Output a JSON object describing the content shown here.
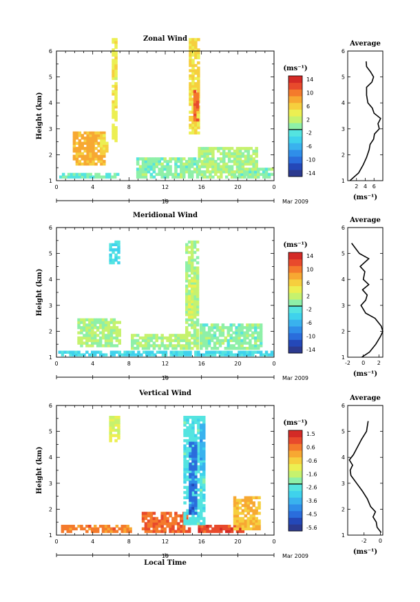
{
  "figure": {
    "date_label": "Mar 2009",
    "day_label": "19",
    "xlabel": "Local Time",
    "colors": [
      "#2c3a8f",
      "#2448b8",
      "#2a6ddc",
      "#2f8ee9",
      "#39b2ee",
      "#3fd2ec",
      "#54e4e0",
      "#8ef0a8",
      "#c6f26e",
      "#ecef52",
      "#f6cf3e",
      "#f7a832",
      "#f47a2c",
      "#e84a2c",
      "#d42a26"
    ]
  },
  "chart_data": [
    {
      "id": "zonal",
      "type": "heatmap",
      "title": "Zonal Wind",
      "ylabel": "Height (km)",
      "xlim": [
        0,
        24
      ],
      "ylim": [
        1,
        6
      ],
      "xticks": [
        "0",
        "4",
        "8",
        "12",
        "16",
        "20",
        "0"
      ],
      "yticks": [
        "1",
        "2",
        "3",
        "4",
        "5",
        "6"
      ],
      "colorbar": {
        "unit": "(ms⁻¹)",
        "labels": [
          "14",
          "10",
          "6",
          "2",
          "-2",
          "-6",
          "-10",
          "-14"
        ],
        "range": [
          -14,
          14
        ]
      },
      "patches": [
        {
          "t": [
            0.3,
            6.8
          ],
          "h": [
            1.1,
            1.3
          ],
          "v": -1
        },
        {
          "t": [
            1.8,
            5.2
          ],
          "h": [
            1.6,
            2.9
          ],
          "v": 7
        },
        {
          "t": [
            4.8,
            5.4
          ],
          "h": [
            2.1,
            2.8
          ],
          "v": 5
        },
        {
          "t": [
            6.1,
            6.5
          ],
          "h": [
            2.5,
            6.4
          ],
          "v": 4
        },
        {
          "t": [
            8.8,
            15.5
          ],
          "h": [
            1.1,
            1.9
          ],
          "v": 0
        },
        {
          "t": [
            14.6,
            15.6
          ],
          "h": [
            2.8,
            6.4
          ],
          "v": 5
        },
        {
          "t": [
            15.1,
            15.5
          ],
          "h": [
            3.3,
            4.4
          ],
          "v": 10
        },
        {
          "t": [
            15.6,
            22.2
          ],
          "h": [
            1.1,
            2.3
          ],
          "v": 1
        },
        {
          "t": [
            20.0,
            23.8
          ],
          "h": [
            1.1,
            1.5
          ],
          "v": 0
        }
      ],
      "profile": {
        "xlim": [
          0,
          8
        ],
        "xticks": [
          "2",
          "4",
          "6"
        ],
        "xtick_vals": [
          2,
          4,
          6
        ],
        "heights": [
          1.0,
          1.3,
          1.6,
          1.9,
          2.2,
          2.4,
          2.6,
          2.8,
          3.0,
          3.2,
          3.4,
          3.6,
          3.8,
          4.0,
          4.3,
          4.6,
          4.8,
          5.0,
          5.2,
          5.4,
          5.6
        ],
        "values": [
          0.5,
          2.5,
          3.5,
          4.3,
          4.9,
          5.1,
          5.9,
          6.1,
          7.2,
          6.9,
          7.5,
          6.0,
          5.6,
          4.6,
          4.3,
          4.3,
          5.5,
          5.9,
          5.2,
          4.3,
          4.2
        ]
      }
    },
    {
      "id": "meridional",
      "type": "heatmap",
      "title": "Meridional Wind",
      "ylabel": "Height (km)",
      "xlim": [
        0,
        24
      ],
      "ylim": [
        1,
        6
      ],
      "xticks": [
        "0",
        "4",
        "8",
        "12",
        "16",
        "20",
        "0"
      ],
      "yticks": [
        "1",
        "2",
        "3",
        "4",
        "5",
        "6"
      ],
      "colorbar": {
        "unit": "(ms⁻¹)",
        "labels": [
          "14",
          "10",
          "6",
          "2",
          "-2",
          "-6",
          "-10",
          "-14"
        ],
        "range": [
          -14,
          14
        ]
      },
      "patches": [
        {
          "t": [
            0.2,
            23.8
          ],
          "h": [
            1.05,
            1.25
          ],
          "v": -3
        },
        {
          "t": [
            5.8,
            6.7
          ],
          "h": [
            4.6,
            5.4
          ],
          "v": -3
        },
        {
          "t": [
            2.3,
            6.8
          ],
          "h": [
            1.4,
            2.5
          ],
          "v": 1
        },
        {
          "t": [
            8.2,
            14.5
          ],
          "h": [
            1.3,
            1.9
          ],
          "v": 1
        },
        {
          "t": [
            14.2,
            15.6
          ],
          "h": [
            1.3,
            5.4
          ],
          "v": 1
        },
        {
          "t": [
            14.5,
            15.2
          ],
          "h": [
            2.5,
            4.0
          ],
          "v": 3
        },
        {
          "t": [
            15.8,
            22.5
          ],
          "h": [
            1.3,
            2.3
          ],
          "v": 0
        }
      ],
      "profile": {
        "xlim": [
          -2,
          2.5
        ],
        "xticks": [
          "-2",
          "0",
          "2"
        ],
        "xtick_vals": [
          -2,
          0,
          2
        ],
        "heights": [
          1.0,
          1.2,
          1.5,
          1.8,
          2.0,
          2.2,
          2.5,
          2.7,
          3.0,
          3.2,
          3.4,
          3.6,
          3.8,
          4.0,
          4.3,
          4.5,
          4.8,
          5.0,
          5.2,
          5.4
        ],
        "values": [
          -0.2,
          0.8,
          1.6,
          2.2,
          2.5,
          2.3,
          1.5,
          0.3,
          -0.3,
          0.3,
          0.5,
          -0.1,
          0.7,
          0.0,
          0.2,
          -0.4,
          0.7,
          -0.5,
          -1.0,
          -1.5
        ]
      }
    },
    {
      "id": "vertical",
      "type": "heatmap",
      "title": "Vertical Wind",
      "ylabel": "Height (km)",
      "xlim": [
        0,
        24
      ],
      "ylim": [
        1,
        6
      ],
      "xticks": [
        "0",
        "4",
        "8",
        "12",
        "16",
        "20",
        "0"
      ],
      "yticks": [
        "1",
        "2",
        "3",
        "4",
        "5",
        "6"
      ],
      "colorbar": {
        "unit": "(ms⁻¹)",
        "labels": [
          "1.5",
          "0.6",
          "-0.6",
          "-1.6",
          "-2.6",
          "-3.6",
          "-4.5",
          "-5.6"
        ],
        "range": [
          -6.0,
          2.0
        ]
      },
      "patches": [
        {
          "t": [
            0.5,
            8.0
          ],
          "h": [
            1.1,
            1.4
          ],
          "v": 0.6
        },
        {
          "t": [
            9.4,
            14.6
          ],
          "h": [
            1.1,
            1.9
          ],
          "v": 0.9
        },
        {
          "t": [
            15.6,
            20.5
          ],
          "h": [
            1.1,
            1.4
          ],
          "v": 1.2
        },
        {
          "t": [
            19.5,
            22.5
          ],
          "h": [
            1.2,
            2.5
          ],
          "v": -0.1
        },
        {
          "t": [
            5.8,
            6.7
          ],
          "h": [
            4.6,
            5.5
          ],
          "v": -1.2
        },
        {
          "t": [
            14.0,
            16.2
          ],
          "h": [
            1.4,
            5.5
          ],
          "v": -2.6
        },
        {
          "t": [
            14.6,
            15.4
          ],
          "h": [
            1.8,
            4.6
          ],
          "v": -4.6
        },
        {
          "t": [
            15.8,
            16.3
          ],
          "h": [
            3.5,
            5.2
          ],
          "v": -3.6
        }
      ],
      "profile": {
        "xlim": [
          -4,
          0.3
        ],
        "xticks": [
          "-2",
          "0"
        ],
        "xtick_vals": [
          -2,
          0
        ],
        "heights": [
          1.1,
          1.3,
          1.5,
          1.7,
          1.9,
          2.1,
          2.4,
          2.7,
          3.0,
          3.3,
          3.5,
          3.7,
          3.9,
          4.1,
          4.4,
          4.7,
          5.0,
          5.2,
          5.4
        ],
        "values": [
          0.1,
          -0.4,
          -0.5,
          -0.9,
          -0.6,
          -1.2,
          -1.6,
          -2.2,
          -2.9,
          -3.6,
          -3.7,
          -3.4,
          -3.8,
          -3.3,
          -2.8,
          -2.3,
          -1.7,
          -1.6,
          -1.5
        ]
      }
    }
  ]
}
